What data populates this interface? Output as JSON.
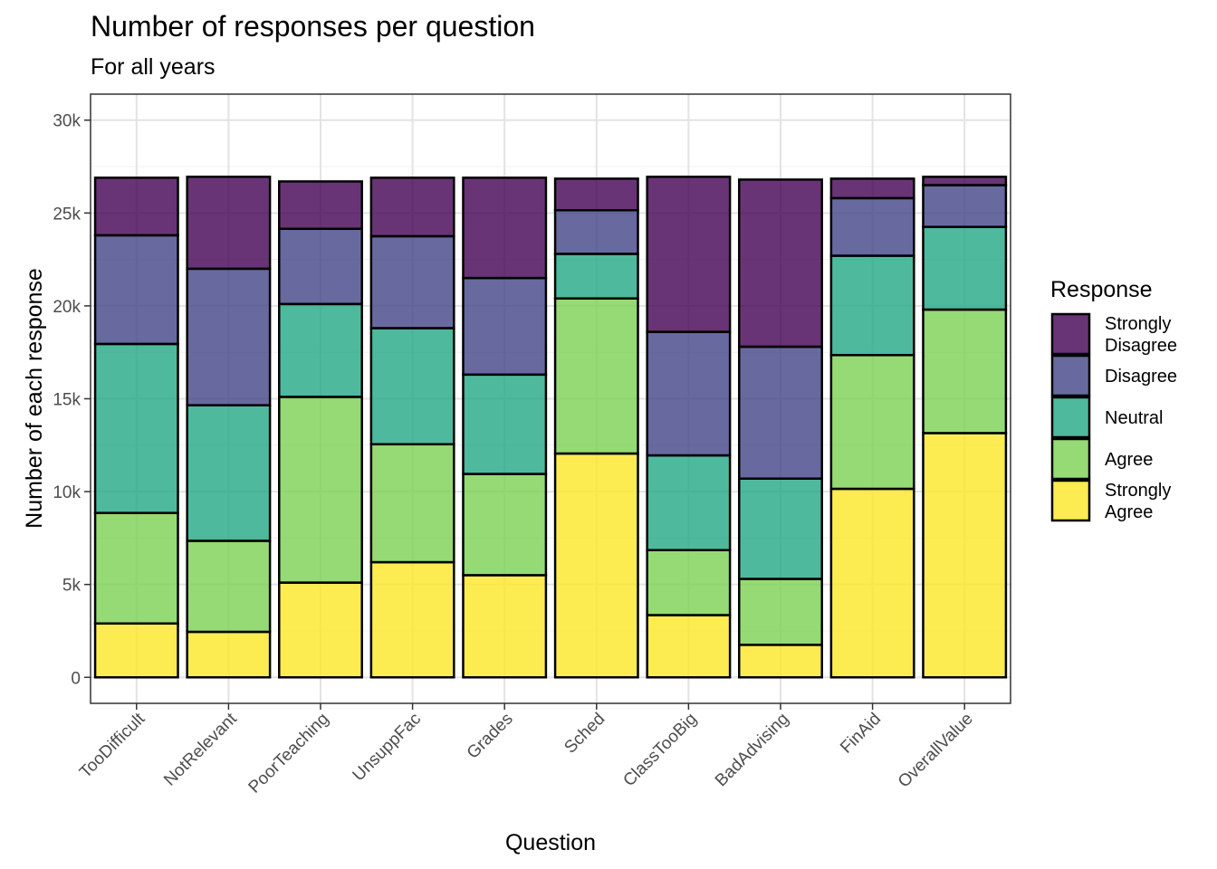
{
  "chart_data": {
    "type": "bar",
    "stacked": true,
    "title": "Number of responses per question",
    "subtitle": "For all years",
    "xlabel": "Question",
    "ylabel": "Number of each response",
    "ylim": [
      -1400,
      31400
    ],
    "yticks": [
      0,
      5000,
      10000,
      15000,
      20000,
      25000,
      30000
    ],
    "ytick_labels": [
      "0",
      "5k",
      "10k",
      "15k",
      "20k",
      "25k",
      "30k"
    ],
    "grid": true,
    "legend_position": "right",
    "legend_title": "Response",
    "categories": [
      "TooDifficult",
      "NotRelevant",
      "PoorTeaching",
      "UnsuppFac",
      "Grades",
      "Sched",
      "ClassTooBig",
      "BadAdvising",
      "FinAid",
      "OverallValue"
    ],
    "series": [
      {
        "name": "Strongly Agree",
        "color": "#FDE725",
        "values": [
          2900,
          2450,
          5100,
          6200,
          5500,
          12050,
          3350,
          1750,
          10150,
          13150
        ]
      },
      {
        "name": "Agree",
        "color": "#7AD151",
        "values": [
          5950,
          4900,
          10000,
          6350,
          5450,
          8350,
          3500,
          3550,
          7200,
          6650
        ]
      },
      {
        "name": "Neutral",
        "color": "#22A884",
        "values": [
          9100,
          7300,
          5000,
          6250,
          5350,
          2400,
          5100,
          5400,
          5350,
          4450
        ]
      },
      {
        "name": "Disagree",
        "color": "#414487",
        "values": [
          5850,
          7350,
          4050,
          4950,
          5200,
          2350,
          6650,
          7100,
          3100,
          2250
        ]
      },
      {
        "name": "Strongly Disagree",
        "color": "#440154",
        "values": [
          3100,
          4950,
          2550,
          3150,
          5400,
          1700,
          8350,
          9000,
          1050,
          450
        ]
      }
    ],
    "legend_order": [
      "Strongly Disagree",
      "Disagree",
      "Neutral",
      "Agree",
      "Strongly Agree"
    ],
    "legend_labels": {
      "Strongly Disagree": [
        "Strongly",
        "Disagree"
      ],
      "Disagree": [
        "Disagree"
      ],
      "Neutral": [
        "Neutral"
      ],
      "Agree": [
        "Agree"
      ],
      "Strongly Agree": [
        "Strongly",
        "Agree"
      ]
    }
  }
}
